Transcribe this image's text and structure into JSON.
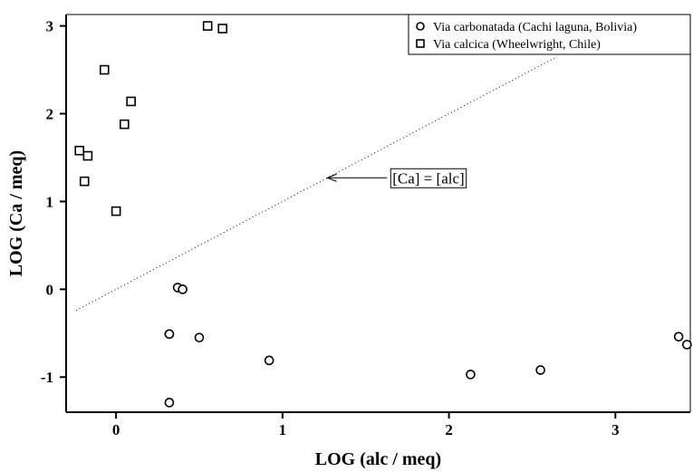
{
  "chart_data": {
    "type": "scatter",
    "xlabel": "LOG (alc / meq)",
    "ylabel": "LOG (Ca / meq)",
    "xlim": [
      -0.3,
      3.45
    ],
    "ylim": [
      -1.4,
      3.13
    ],
    "xticks": [
      0,
      1,
      2,
      3
    ],
    "yticks": [
      -1,
      0,
      1,
      2,
      3
    ],
    "grid": false,
    "legend_position": "top-right",
    "series": [
      {
        "name": "Via carbonatada (Cachi laguna, Bolivia)",
        "marker": "circle",
        "x": [
          0.32,
          0.37,
          0.4,
          0.32,
          0.5,
          0.92,
          0.32,
          2.13,
          2.55,
          3.38,
          3.43
        ],
        "y": [
          -0.51,
          0.02,
          0.0,
          -0.51,
          -0.55,
          -0.81,
          -1.29,
          -0.97,
          -0.92,
          -0.54,
          -0.63
        ]
      },
      {
        "name": "Via calcica (Wheelwright, Chile)",
        "marker": "square",
        "x": [
          0.55,
          0.64,
          -0.07,
          0.09,
          0.05,
          -0.22,
          -0.17,
          -0.19,
          0.0
        ],
        "y": [
          3.0,
          2.97,
          2.5,
          2.14,
          1.88,
          1.58,
          1.52,
          1.23,
          0.89
        ]
      }
    ],
    "reference_line": {
      "style": "dotted",
      "x": [
        -0.24,
        2.65
      ],
      "y": [
        -0.24,
        2.65
      ]
    },
    "annotation": {
      "text": "[Ca] = [alc]",
      "arrow_to": [
        1.27,
        1.27
      ],
      "text_at": [
        1.65,
        1.27
      ]
    }
  }
}
